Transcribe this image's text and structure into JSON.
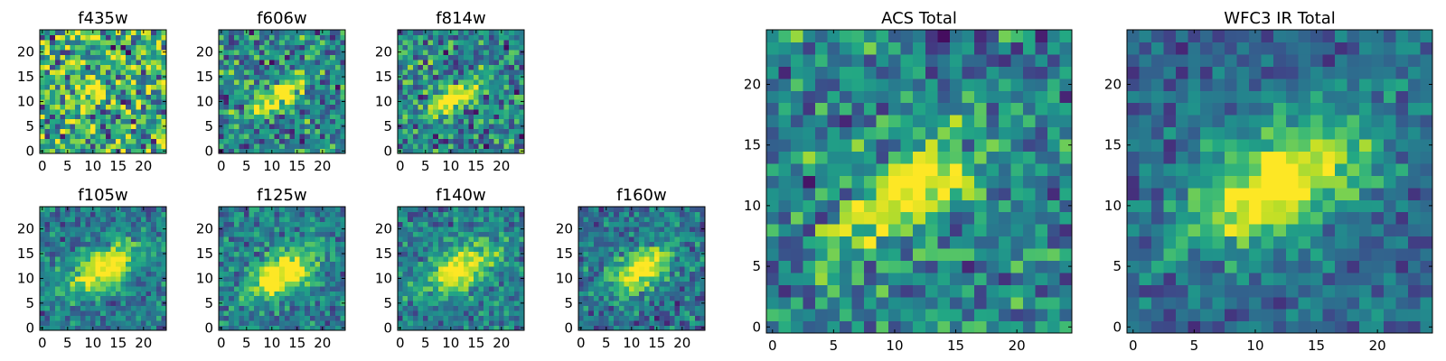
{
  "chart_data": {
    "type": "heatmap",
    "colormap": "viridis",
    "value_range": [
      0,
      1
    ],
    "panels": [
      {
        "title": "f435w",
        "xticks": [
          0,
          5,
          10,
          15,
          20
        ],
        "yticks": [
          0,
          5,
          10,
          15,
          20
        ],
        "xlim": [
          0,
          25
        ],
        "ylim": [
          0,
          25
        ],
        "grid_size": 25,
        "noise": 0.62,
        "peak": 0.35,
        "bg": 0.62,
        "center": [
          10,
          11
        ],
        "sigma": [
          3.5,
          2.0
        ],
        "angle_deg": 35,
        "seed": 11
      },
      {
        "title": "f606w",
        "xticks": [
          0,
          5,
          10,
          15,
          20
        ],
        "yticks": [
          0,
          5,
          10,
          15,
          20
        ],
        "xlim": [
          0,
          25
        ],
        "ylim": [
          0,
          25
        ],
        "grid_size": 25,
        "noise": 0.45,
        "peak": 0.65,
        "bg": 0.45,
        "center": [
          11,
          11
        ],
        "sigma": [
          4.5,
          1.6
        ],
        "angle_deg": 30,
        "seed": 23
      },
      {
        "title": "f814w",
        "xticks": [
          0,
          5,
          10,
          15,
          20
        ],
        "yticks": [
          0,
          5,
          10,
          15,
          20
        ],
        "xlim": [
          0,
          25
        ],
        "ylim": [
          0,
          25
        ],
        "grid_size": 25,
        "noise": 0.45,
        "peak": 0.7,
        "bg": 0.45,
        "center": [
          11,
          11
        ],
        "sigma": [
          4.0,
          1.6
        ],
        "angle_deg": 30,
        "seed": 37
      },
      {
        "title": "f105w",
        "xticks": [
          0,
          5,
          10,
          15,
          20
        ],
        "yticks": [
          0,
          5,
          10,
          15,
          20
        ],
        "xlim": [
          0,
          25
        ],
        "ylim": [
          0,
          25
        ],
        "grid_size": 25,
        "noise": 0.3,
        "peak": 0.75,
        "bg": 0.4,
        "center": [
          12,
          12
        ],
        "sigma": [
          5.0,
          2.6
        ],
        "angle_deg": 30,
        "seed": 41
      },
      {
        "title": "f125w",
        "xticks": [
          0,
          5,
          10,
          15,
          20
        ],
        "yticks": [
          0,
          5,
          10,
          15,
          20
        ],
        "xlim": [
          0,
          25
        ],
        "ylim": [
          0,
          25
        ],
        "grid_size": 25,
        "noise": 0.3,
        "peak": 0.75,
        "bg": 0.42,
        "center": [
          12,
          11
        ],
        "sigma": [
          5.0,
          2.6
        ],
        "angle_deg": 30,
        "seed": 53
      },
      {
        "title": "f140w",
        "xticks": [
          0,
          5,
          10,
          15,
          20
        ],
        "yticks": [
          0,
          5,
          10,
          15,
          20
        ],
        "xlim": [
          0,
          25
        ],
        "ylim": [
          0,
          25
        ],
        "grid_size": 25,
        "noise": 0.3,
        "peak": 0.7,
        "bg": 0.42,
        "center": [
          12,
          12
        ],
        "sigma": [
          5.0,
          2.6
        ],
        "angle_deg": 30,
        "seed": 67
      },
      {
        "title": "f160w",
        "xticks": [
          0,
          5,
          10,
          15,
          20
        ],
        "yticks": [
          0,
          5,
          10,
          15,
          20
        ],
        "xlim": [
          0,
          25
        ],
        "ylim": [
          0,
          25
        ],
        "grid_size": 25,
        "noise": 0.32,
        "peak": 0.75,
        "bg": 0.38,
        "center": [
          12,
          12
        ],
        "sigma": [
          4.5,
          2.4
        ],
        "angle_deg": 30,
        "seed": 79
      },
      {
        "title": "ACS Total",
        "xticks": [
          0,
          5,
          10,
          15,
          20
        ],
        "yticks": [
          0,
          5,
          10,
          15,
          20
        ],
        "xlim": [
          0,
          25
        ],
        "ylim": [
          0,
          25
        ],
        "grid_size": 25,
        "noise": 0.42,
        "peak": 0.75,
        "bg": 0.45,
        "center": [
          11,
          11
        ],
        "sigma": [
          4.0,
          1.8
        ],
        "angle_deg": 32,
        "seed": 91
      },
      {
        "title": "WFC3 IR Total",
        "xticks": [
          0,
          5,
          10,
          15,
          20
        ],
        "yticks": [
          0,
          5,
          10,
          15,
          20
        ],
        "xlim": [
          0,
          25
        ],
        "ylim": [
          0,
          25
        ],
        "grid_size": 25,
        "noise": 0.26,
        "peak": 0.75,
        "bg": 0.35,
        "center": [
          12,
          12
        ],
        "sigma": [
          5.5,
          2.8
        ],
        "angle_deg": 28,
        "seed": 103
      }
    ]
  }
}
